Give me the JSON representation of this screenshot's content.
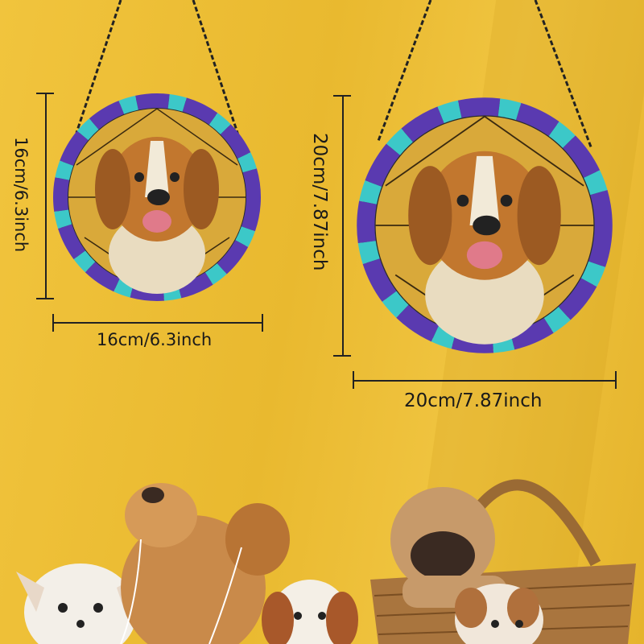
{
  "small_ornament": {
    "height_label": "16cm/6.3inch",
    "width_label": "16cm/6.3inch"
  },
  "large_ornament": {
    "height_label": "20cm/7.87inch",
    "width_label": "20cm/7.87inch"
  },
  "colors": {
    "background": "#eec13a",
    "rim_purple": "#5a3ab0",
    "rim_teal": "#3cc8c8",
    "glass_yellow": "#d9a93a",
    "dog_brown": "#c2772e"
  }
}
